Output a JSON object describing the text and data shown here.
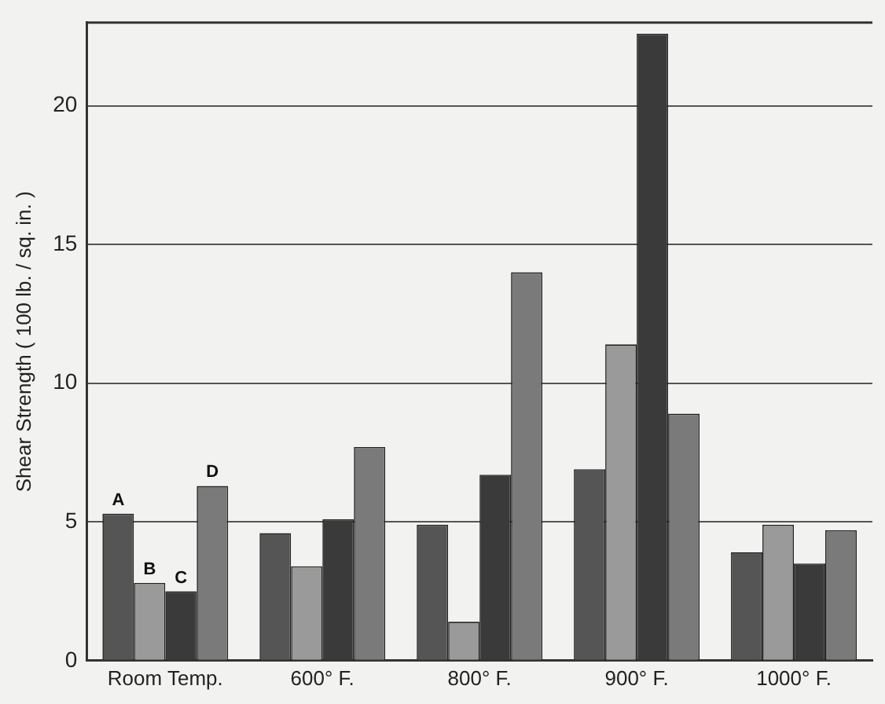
{
  "chart_data": {
    "type": "bar",
    "ylabel": "Shear Strength ( 100 lb. / sq. in. )",
    "categories": [
      "Room Temp.",
      "600° F.",
      "800° F.",
      "900° F.",
      "1000° F."
    ],
    "series": [
      {
        "name": "A",
        "color": "#555555",
        "values": [
          5.3,
          4.6,
          4.9,
          6.9,
          3.9
        ]
      },
      {
        "name": "B",
        "color": "#9a9a9a",
        "values": [
          2.8,
          3.4,
          1.4,
          11.4,
          4.9
        ]
      },
      {
        "name": "C",
        "color": "#3a3a3a",
        "values": [
          2.5,
          5.1,
          6.7,
          22.6,
          3.5
        ]
      },
      {
        "name": "D",
        "color": "#7a7a7a",
        "values": [
          6.3,
          7.7,
          14.0,
          8.9,
          4.7
        ]
      }
    ],
    "ylim": [
      0,
      23
    ],
    "yticks": [
      0,
      5,
      10,
      15,
      20
    ],
    "grid": "y",
    "legend": false
  }
}
